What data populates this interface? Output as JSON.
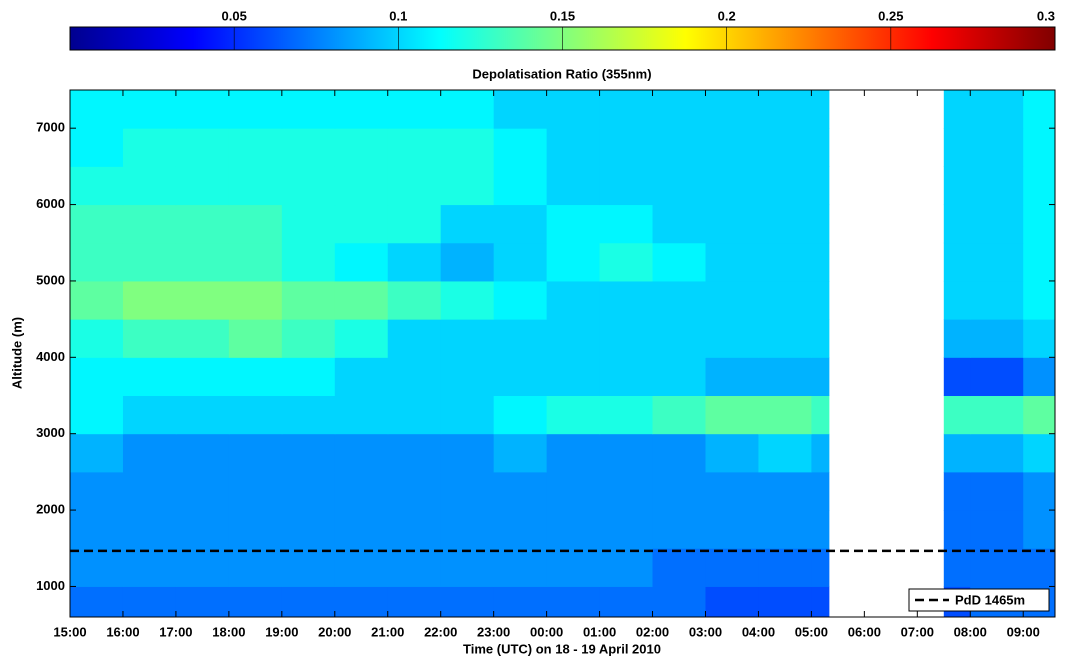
{
  "chart_data": {
    "type": "heatmap",
    "colorbar_label": "Depolatisation Ratio (355nm)",
    "ylabel": "Altitude (m)",
    "xlabel": "Time (UTC) on 18 - 19 April 2010",
    "colormap": "jet",
    "clim": [
      0,
      0.3
    ],
    "cticks": [
      0.05,
      0.1,
      0.15,
      0.2,
      0.25,
      0.3
    ],
    "xlim": [
      15,
      33.6
    ],
    "xticks": [
      {
        "value": 15,
        "label": "15:00"
      },
      {
        "value": 16,
        "label": "16:00"
      },
      {
        "value": 17,
        "label": "17:00"
      },
      {
        "value": 18,
        "label": "18:00"
      },
      {
        "value": 19,
        "label": "19:00"
      },
      {
        "value": 20,
        "label": "20:00"
      },
      {
        "value": 21,
        "label": "21:00"
      },
      {
        "value": 22,
        "label": "22:00"
      },
      {
        "value": 23,
        "label": "23:00"
      },
      {
        "value": 24,
        "label": "00:00"
      },
      {
        "value": 25,
        "label": "01:00"
      },
      {
        "value": 26,
        "label": "02:00"
      },
      {
        "value": 27,
        "label": "03:00"
      },
      {
        "value": 28,
        "label": "04:00"
      },
      {
        "value": 29,
        "label": "05:00"
      },
      {
        "value": 30,
        "label": "06:00"
      },
      {
        "value": 31,
        "label": "07:00"
      },
      {
        "value": 32,
        "label": "08:00"
      },
      {
        "value": 33,
        "label": "09:00"
      }
    ],
    "ylim": [
      600,
      7500
    ],
    "yticks": [
      1000,
      2000,
      3000,
      4000,
      5000,
      6000,
      7000
    ],
    "xbins": [
      15,
      16,
      17,
      18,
      19,
      20,
      21,
      22,
      23,
      24,
      25,
      26,
      27,
      28,
      29,
      29.33,
      31.5,
      32,
      33,
      33.6
    ],
    "ybins": [
      600,
      1000,
      1500,
      2000,
      2500,
      3000,
      3500,
      4000,
      4500,
      5000,
      5500,
      6000,
      6500,
      7000,
      7500
    ],
    "values": [
      [
        0.07,
        0.07,
        0.07,
        0.07,
        0.07,
        0.07,
        0.07,
        0.07,
        0.07,
        0.07,
        0.07,
        0.07,
        0.06,
        0.06,
        0.06,
        null,
        0.06,
        0.07,
        0.07
      ],
      [
        0.08,
        0.08,
        0.08,
        0.08,
        0.08,
        0.08,
        0.08,
        0.08,
        0.08,
        0.08,
        0.08,
        0.07,
        0.07,
        0.07,
        0.07,
        null,
        0.07,
        0.07,
        0.07
      ],
      [
        0.08,
        0.08,
        0.08,
        0.08,
        0.08,
        0.08,
        0.08,
        0.08,
        0.08,
        0.08,
        0.08,
        0.08,
        0.08,
        0.08,
        0.08,
        null,
        0.07,
        0.07,
        0.08
      ],
      [
        0.08,
        0.08,
        0.08,
        0.08,
        0.08,
        0.08,
        0.08,
        0.08,
        0.08,
        0.08,
        0.08,
        0.08,
        0.08,
        0.08,
        0.08,
        null,
        0.07,
        0.07,
        0.08
      ],
      [
        0.09,
        0.08,
        0.08,
        0.08,
        0.08,
        0.08,
        0.08,
        0.08,
        0.09,
        0.08,
        0.08,
        0.08,
        0.09,
        0.1,
        0.09,
        null,
        0.09,
        0.09,
        0.1
      ],
      [
        0.11,
        0.1,
        0.1,
        0.1,
        0.1,
        0.1,
        0.1,
        0.1,
        0.11,
        0.12,
        0.12,
        0.13,
        0.14,
        0.14,
        0.13,
        null,
        0.13,
        0.13,
        0.14
      ],
      [
        0.11,
        0.11,
        0.11,
        0.11,
        0.11,
        0.1,
        0.1,
        0.1,
        0.1,
        0.1,
        0.1,
        0.1,
        0.09,
        0.09,
        0.09,
        null,
        0.06,
        0.06,
        0.08
      ],
      [
        0.12,
        0.13,
        0.13,
        0.14,
        0.13,
        0.12,
        0.1,
        0.1,
        0.1,
        0.1,
        0.1,
        0.1,
        0.1,
        0.1,
        0.1,
        null,
        0.09,
        0.09,
        0.1
      ],
      [
        0.14,
        0.15,
        0.15,
        0.15,
        0.14,
        0.14,
        0.13,
        0.12,
        0.11,
        0.1,
        0.1,
        0.1,
        0.1,
        0.1,
        0.1,
        null,
        0.1,
        0.1,
        0.11
      ],
      [
        0.13,
        0.13,
        0.13,
        0.13,
        0.12,
        0.11,
        0.1,
        0.09,
        0.1,
        0.11,
        0.12,
        0.11,
        0.1,
        0.1,
        0.1,
        null,
        0.1,
        0.1,
        0.11
      ],
      [
        0.13,
        0.13,
        0.13,
        0.13,
        0.12,
        0.12,
        0.12,
        0.1,
        0.1,
        0.11,
        0.11,
        0.1,
        0.1,
        0.1,
        0.1,
        null,
        0.1,
        0.1,
        0.11
      ],
      [
        0.12,
        0.12,
        0.12,
        0.12,
        0.12,
        0.12,
        0.12,
        0.12,
        0.11,
        0.1,
        0.1,
        0.1,
        0.1,
        0.1,
        0.1,
        null,
        0.1,
        0.1,
        0.11
      ],
      [
        0.11,
        0.12,
        0.12,
        0.12,
        0.12,
        0.12,
        0.12,
        0.12,
        0.11,
        0.1,
        0.1,
        0.1,
        0.1,
        0.1,
        0.1,
        null,
        0.1,
        0.1,
        0.11
      ],
      [
        0.11,
        0.11,
        0.11,
        0.11,
        0.11,
        0.11,
        0.11,
        0.11,
        0.1,
        0.1,
        0.1,
        0.1,
        0.1,
        0.1,
        0.1,
        null,
        0.1,
        0.1,
        0.11
      ]
    ],
    "reference_line": {
      "name": "PdD 1465m",
      "value": 1465,
      "color": "#000000",
      "style": "dashed"
    },
    "legend": "lower right"
  }
}
